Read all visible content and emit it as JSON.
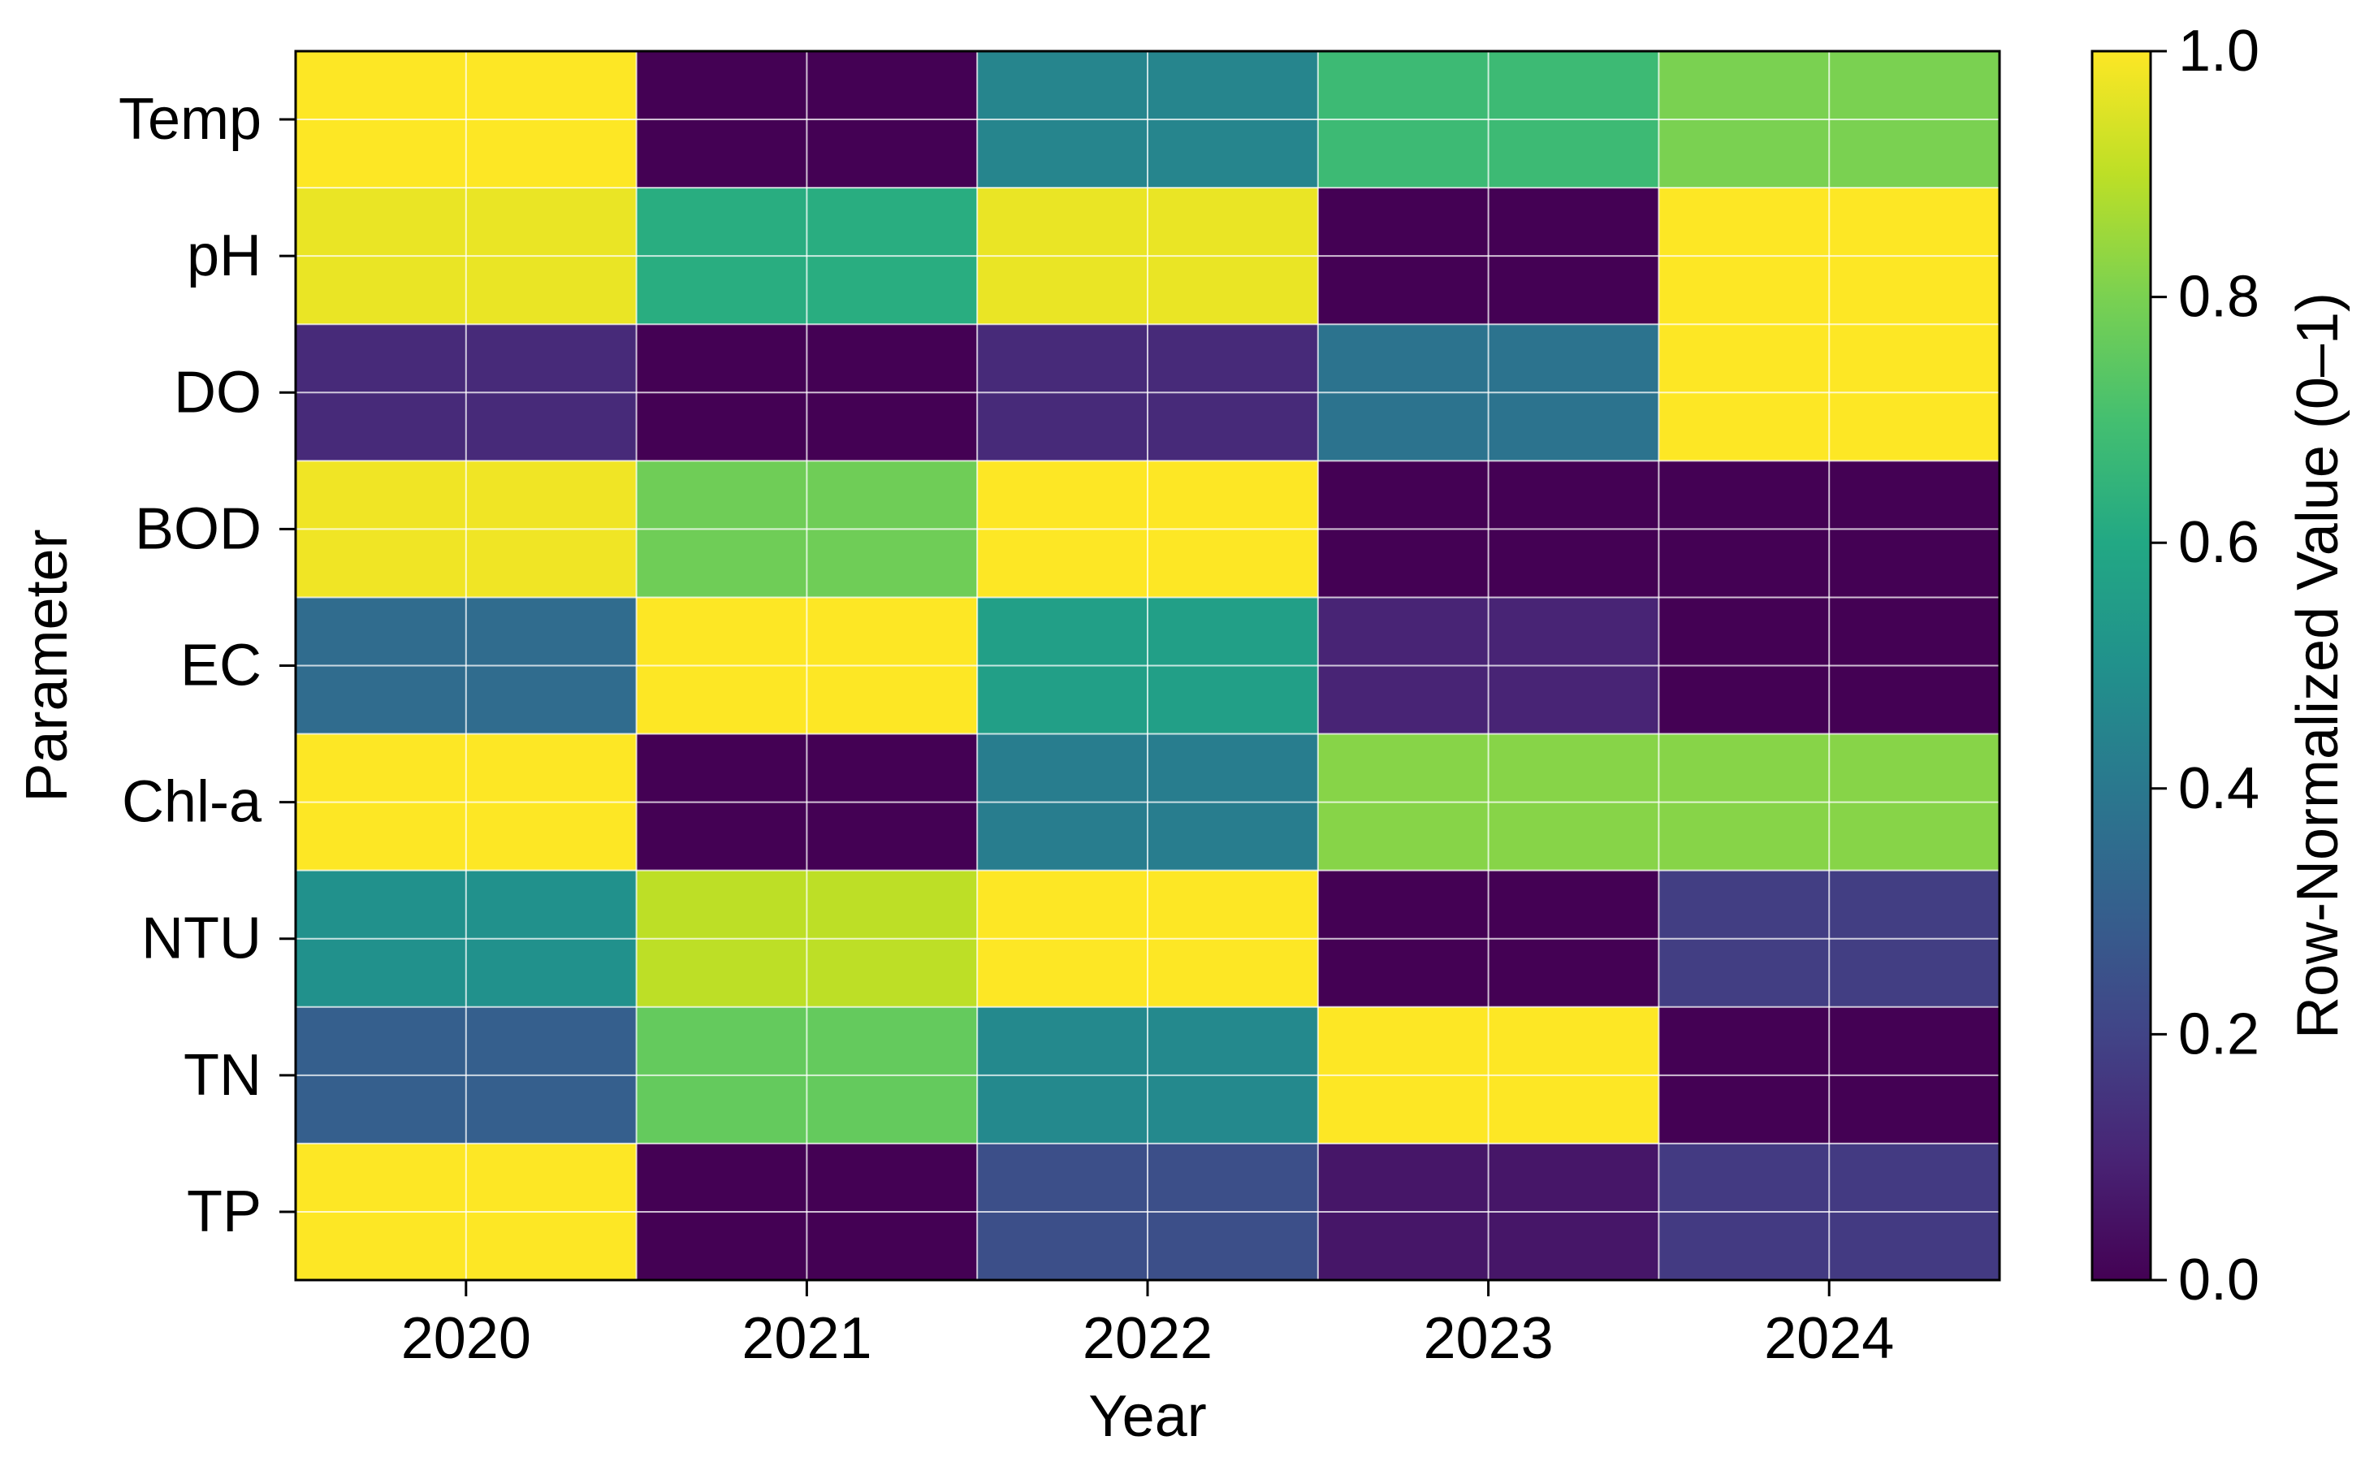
{
  "chart_data": {
    "type": "heatmap",
    "title": "",
    "xlabel": "Year",
    "ylabel": "Parameter",
    "x_categories": [
      "2020",
      "2021",
      "2022",
      "2023",
      "2024"
    ],
    "y_categories": [
      "Temp",
      "pH",
      "DO",
      "BOD",
      "EC",
      "Chl-a",
      "NTU",
      "TN",
      "TP"
    ],
    "values": [
      [
        1.0,
        0.0,
        0.45,
        0.68,
        0.8
      ],
      [
        0.97,
        0.62,
        0.97,
        0.0,
        1.0
      ],
      [
        0.12,
        0.0,
        0.12,
        0.38,
        1.0
      ],
      [
        0.98,
        0.78,
        1.0,
        0.0,
        0.0
      ],
      [
        0.35,
        1.0,
        0.56,
        0.1,
        0.0
      ],
      [
        1.0,
        0.0,
        0.42,
        0.82,
        0.82
      ],
      [
        0.5,
        0.9,
        1.0,
        0.0,
        0.18
      ],
      [
        0.3,
        0.76,
        0.47,
        1.0,
        0.0
      ],
      [
        1.0,
        0.0,
        0.24,
        0.06,
        0.17
      ]
    ],
    "colormap": "viridis",
    "grid": true,
    "colorbar": {
      "label": "Row-Normalized Value (0–1)",
      "range": [
        0.0,
        1.0
      ],
      "ticks": [
        "0.0",
        "0.2",
        "0.4",
        "0.6",
        "0.8",
        "1.0"
      ]
    }
  }
}
